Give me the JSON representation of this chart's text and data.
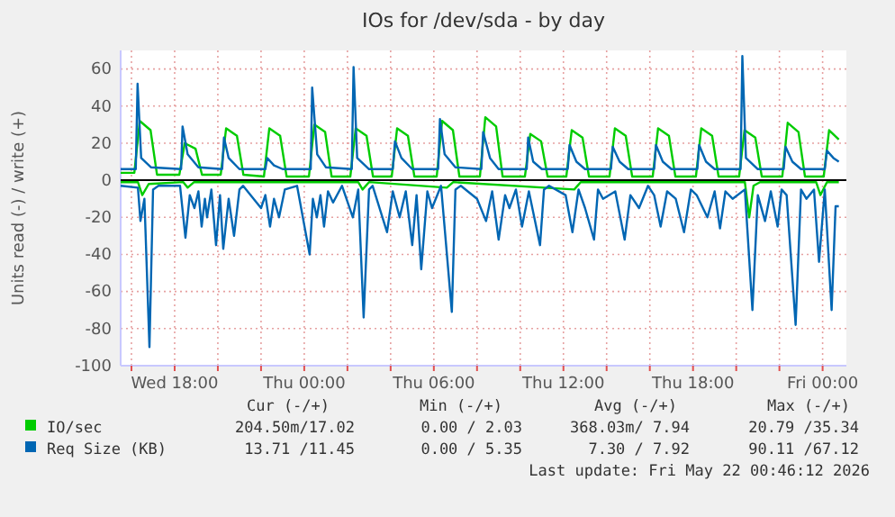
{
  "chart_data": {
    "type": "line",
    "title": "IOs for /dev/sda - by day",
    "ylabel": "Units read (-) / write (+)",
    "xlim": [
      "2026-05-20T15:30",
      "2026-05-22T01:06"
    ],
    "xticks": [
      {
        "value": "2026-05-20T16:00",
        "label": null
      },
      {
        "value": "2026-05-20T18:00",
        "label": "Wed 18:00"
      },
      {
        "value": "2026-05-20T20:00",
        "label": null
      },
      {
        "value": "2026-05-20T22:00",
        "label": null
      },
      {
        "value": "2026-05-21T00:00",
        "label": "Thu 00:00"
      },
      {
        "value": "2026-05-21T02:00",
        "label": null
      },
      {
        "value": "2026-05-21T04:00",
        "label": null
      },
      {
        "value": "2026-05-21T06:00",
        "label": "Thu 06:00"
      },
      {
        "value": "2026-05-21T08:00",
        "label": null
      },
      {
        "value": "2026-05-21T10:00",
        "label": null
      },
      {
        "value": "2026-05-21T12:00",
        "label": "Thu 12:00"
      },
      {
        "value": "2026-05-21T14:00",
        "label": null
      },
      {
        "value": "2026-05-21T16:00",
        "label": null
      },
      {
        "value": "2026-05-21T18:00",
        "label": "Thu 18:00"
      },
      {
        "value": "2026-05-21T20:00",
        "label": null
      },
      {
        "value": "2026-05-21T22:00",
        "label": null
      },
      {
        "value": "2026-05-22T00:00",
        "label": "Fri 00:00"
      }
    ],
    "ylim": [
      -100,
      70
    ],
    "yticks": [
      -100,
      -80,
      -60,
      -40,
      -20,
      0,
      20,
      40,
      60
    ],
    "grid": true,
    "legend": "bottom",
    "line_style": "solid",
    "marker": "none",
    "ref_lines": [
      {
        "axis": "y",
        "value": 0,
        "color": "#000000"
      }
    ],
    "series": [
      {
        "color": "#00cc00",
        "x": [
          "2026-05-20T15:30",
          "2026-05-20T16:18",
          "2026-05-20T16:30",
          "2026-05-20T16:48",
          "2026-05-20T18:24",
          "2026-05-20T18:36",
          "2026-05-20T18:54",
          "2026-05-21T02:30",
          "2026-05-21T02:42",
          "2026-05-21T03:00",
          "2026-05-21T06:36",
          "2026-05-21T06:54",
          "2026-05-21T12:30",
          "2026-05-21T12:48",
          "2026-05-21T20:24",
          "2026-05-21T20:36",
          "2026-05-21T20:48",
          "2026-05-21T21:06",
          "2026-05-21T23:42",
          "2026-05-21T23:54",
          "2026-05-22T00:12",
          "2026-05-22T00:45"
        ],
        "values": [
          -1,
          -1,
          -8,
          -2,
          -1,
          -4,
          -1,
          -1,
          -5,
          -1,
          -4,
          -1,
          -5,
          -1,
          -1,
          -20,
          -3,
          -1,
          -1,
          -8,
          -1,
          -1
        ]
      },
      {
        "name": "IO/sec",
        "color": "#00cc00",
        "x": [
          "2026-05-20T15:30",
          "2026-05-20T16:08",
          "2026-05-20T16:23",
          "2026-05-20T16:53",
          "2026-05-20T17:11",
          "2026-05-20T18:13",
          "2026-05-20T18:28",
          "2026-05-20T18:58",
          "2026-05-20T19:16",
          "2026-05-20T20:08",
          "2026-05-20T20:23",
          "2026-05-20T20:53",
          "2026-05-20T21:11",
          "2026-05-20T22:08",
          "2026-05-20T22:23",
          "2026-05-20T22:53",
          "2026-05-20T23:11",
          "2026-05-21T00:13",
          "2026-05-21T00:28",
          "2026-05-21T00:58",
          "2026-05-21T01:16",
          "2026-05-21T02:08",
          "2026-05-21T02:23",
          "2026-05-21T02:53",
          "2026-05-21T03:11",
          "2026-05-21T04:03",
          "2026-05-21T04:18",
          "2026-05-21T04:48",
          "2026-05-21T05:06",
          "2026-05-21T06:08",
          "2026-05-21T06:23",
          "2026-05-21T06:53",
          "2026-05-21T07:11",
          "2026-05-21T08:08",
          "2026-05-21T08:23",
          "2026-05-21T08:53",
          "2026-05-21T09:11",
          "2026-05-21T10:13",
          "2026-05-21T10:28",
          "2026-05-21T10:58",
          "2026-05-21T11:16",
          "2026-05-21T12:08",
          "2026-05-21T12:23",
          "2026-05-21T12:53",
          "2026-05-21T13:11",
          "2026-05-21T14:08",
          "2026-05-21T14:23",
          "2026-05-21T14:53",
          "2026-05-21T15:11",
          "2026-05-21T16:08",
          "2026-05-21T16:23",
          "2026-05-21T16:53",
          "2026-05-21T17:11",
          "2026-05-21T18:08",
          "2026-05-21T18:23",
          "2026-05-21T18:53",
          "2026-05-21T19:11",
          "2026-05-21T20:08",
          "2026-05-21T20:23",
          "2026-05-21T20:53",
          "2026-05-21T21:11",
          "2026-05-21T22:08",
          "2026-05-21T22:23",
          "2026-05-21T22:53",
          "2026-05-21T23:11",
          "2026-05-22T00:03",
          "2026-05-22T00:18",
          "2026-05-22T00:45"
        ],
        "values": [
          4,
          4,
          32,
          27,
          3,
          3,
          20,
          17,
          3,
          3,
          28,
          24,
          3,
          2,
          28,
          24,
          2,
          2,
          30,
          26,
          2,
          2,
          28,
          24,
          2,
          2,
          28,
          24,
          2,
          2,
          32,
          27,
          2,
          2,
          34,
          29,
          2,
          2,
          25,
          21,
          2,
          2,
          27,
          23,
          2,
          2,
          28,
          24,
          2,
          2,
          28,
          24,
          2,
          2,
          28,
          24,
          2,
          2,
          27,
          23,
          2,
          2,
          31,
          26,
          2,
          2,
          27,
          22
        ]
      },
      {
        "color": "#0066b3",
        "x": [
          "2026-05-20T15:30",
          "2026-05-20T16:18",
          "2026-05-20T16:25",
          "2026-05-20T16:36",
          "2026-05-20T16:50",
          "2026-05-20T17:00",
          "2026-05-20T17:15",
          "2026-05-20T18:15",
          "2026-05-20T18:30",
          "2026-05-20T18:42",
          "2026-05-20T18:55",
          "2026-05-20T19:06",
          "2026-05-20T19:15",
          "2026-05-20T19:24",
          "2026-05-20T19:30",
          "2026-05-20T19:42",
          "2026-05-20T19:55",
          "2026-05-20T20:06",
          "2026-05-20T20:15",
          "2026-05-20T20:30",
          "2026-05-20T20:45",
          "2026-05-20T21:00",
          "2026-05-20T21:10",
          "2026-05-20T22:00",
          "2026-05-20T22:12",
          "2026-05-20T22:25",
          "2026-05-20T22:36",
          "2026-05-20T22:50",
          "2026-05-20T23:06",
          "2026-05-20T23:40",
          "2026-05-21T00:15",
          "2026-05-21T00:24",
          "2026-05-21T00:35",
          "2026-05-21T00:45",
          "2026-05-21T00:55",
          "2026-05-21T01:06",
          "2026-05-21T01:20",
          "2026-05-21T01:45",
          "2026-05-21T02:15",
          "2026-05-21T02:30",
          "2026-05-21T02:45",
          "2026-05-21T03:00",
          "2026-05-21T03:10",
          "2026-05-21T03:50",
          "2026-05-21T04:06",
          "2026-05-21T04:25",
          "2026-05-21T04:42",
          "2026-05-21T05:00",
          "2026-05-21T05:12",
          "2026-05-21T05:25",
          "2026-05-21T05:42",
          "2026-05-21T05:55",
          "2026-05-21T06:20",
          "2026-05-21T06:50",
          "2026-05-21T07:00",
          "2026-05-21T07:15",
          "2026-05-21T08:00",
          "2026-05-21T08:25",
          "2026-05-21T08:42",
          "2026-05-21T09:00",
          "2026-05-21T09:18",
          "2026-05-21T09:30",
          "2026-05-21T09:48",
          "2026-05-21T10:05",
          "2026-05-21T10:24",
          "2026-05-21T10:55",
          "2026-05-21T11:06",
          "2026-05-21T11:20",
          "2026-05-21T12:06",
          "2026-05-21T12:25",
          "2026-05-21T12:42",
          "2026-05-21T13:00",
          "2026-05-21T13:25",
          "2026-05-21T13:36",
          "2026-05-21T13:50",
          "2026-05-21T14:24",
          "2026-05-21T14:50",
          "2026-05-21T15:06",
          "2026-05-21T15:30",
          "2026-05-21T15:55",
          "2026-05-21T16:12",
          "2026-05-21T16:30",
          "2026-05-21T16:48",
          "2026-05-21T17:12",
          "2026-05-21T17:35",
          "2026-05-21T17:54",
          "2026-05-21T18:10",
          "2026-05-21T18:40",
          "2026-05-21T19:00",
          "2026-05-21T19:15",
          "2026-05-21T19:30",
          "2026-05-21T19:50",
          "2026-05-21T20:24",
          "2026-05-21T20:45",
          "2026-05-21T21:00",
          "2026-05-21T21:20",
          "2026-05-21T21:36",
          "2026-05-21T21:55",
          "2026-05-21T22:06",
          "2026-05-21T22:20",
          "2026-05-21T22:45",
          "2026-05-21T23:00",
          "2026-05-21T23:15",
          "2026-05-21T23:36",
          "2026-05-21T23:50",
          "2026-05-22T00:06",
          "2026-05-22T00:25",
          "2026-05-22T00:36",
          "2026-05-22T00:45"
        ],
        "values": [
          -3,
          -4,
          -22,
          -10,
          -90,
          -5,
          -3,
          -3,
          -31,
          -8,
          -15,
          -6,
          -25,
          -10,
          -20,
          -5,
          -35,
          -8,
          -37,
          -10,
          -30,
          -5,
          -3,
          -15,
          -8,
          -25,
          -10,
          -20,
          -5,
          -3,
          -40,
          -10,
          -20,
          -8,
          -25,
          -6,
          -12,
          -3,
          -20,
          -5,
          -74,
          -5,
          -3,
          -28,
          -6,
          -20,
          -6,
          -35,
          -8,
          -48,
          -6,
          -15,
          -3,
          -71,
          -5,
          -3,
          -10,
          -22,
          -6,
          -32,
          -8,
          -15,
          -5,
          -25,
          -6,
          -35,
          -5,
          -3,
          -8,
          -28,
          -5,
          -15,
          -32,
          -5,
          -10,
          -6,
          -32,
          -8,
          -15,
          -3,
          -8,
          -25,
          -6,
          -10,
          -28,
          -5,
          -8,
          -20,
          -6,
          -26,
          -6,
          -10,
          -5,
          -70,
          -8,
          -22,
          -6,
          -25,
          -5,
          -8,
          -78,
          -5,
          -10,
          -5,
          -44,
          -5,
          -70,
          -14,
          -14
        ]
      },
      {
        "name": "Req Size (KB)",
        "color": "#0066b3",
        "x": [
          "2026-05-20T15:30",
          "2026-05-20T16:12",
          "2026-05-20T16:17",
          "2026-05-20T16:27",
          "2026-05-20T16:54",
          "2026-05-20T18:18",
          "2026-05-20T18:22",
          "2026-05-20T18:36",
          "2026-05-20T19:06",
          "2026-05-20T20:12",
          "2026-05-20T20:17",
          "2026-05-20T20:30",
          "2026-05-20T21:00",
          "2026-05-20T22:12",
          "2026-05-20T22:17",
          "2026-05-20T22:36",
          "2026-05-20T23:00",
          "2026-05-21T00:18",
          "2026-05-21T00:22",
          "2026-05-21T00:36",
          "2026-05-21T01:00",
          "2026-05-21T02:12",
          "2026-05-21T02:17",
          "2026-05-21T02:27",
          "2026-05-21T03:00",
          "2026-05-21T04:06",
          "2026-05-21T04:12",
          "2026-05-21T04:30",
          "2026-05-21T05:00",
          "2026-05-21T06:12",
          "2026-05-21T06:17",
          "2026-05-21T06:30",
          "2026-05-21T07:00",
          "2026-05-21T08:12",
          "2026-05-21T08:17",
          "2026-05-21T08:36",
          "2026-05-21T09:00",
          "2026-05-21T10:18",
          "2026-05-21T10:22",
          "2026-05-21T10:36",
          "2026-05-21T11:00",
          "2026-05-21T12:12",
          "2026-05-21T12:17",
          "2026-05-21T12:36",
          "2026-05-21T13:00",
          "2026-05-21T14:12",
          "2026-05-21T14:17",
          "2026-05-21T14:36",
          "2026-05-21T15:00",
          "2026-05-21T16:12",
          "2026-05-21T16:17",
          "2026-05-21T16:36",
          "2026-05-21T17:00",
          "2026-05-21T18:12",
          "2026-05-21T18:17",
          "2026-05-21T18:36",
          "2026-05-21T19:00",
          "2026-05-21T20:12",
          "2026-05-21T20:17",
          "2026-05-21T20:27",
          "2026-05-21T21:00",
          "2026-05-21T22:12",
          "2026-05-21T22:17",
          "2026-05-21T22:36",
          "2026-05-21T23:00",
          "2026-05-22T00:06",
          "2026-05-22T00:12",
          "2026-05-22T00:30",
          "2026-05-22T00:45"
        ],
        "values": [
          6,
          6,
          52,
          12,
          7,
          6,
          29,
          14,
          7,
          6,
          23,
          12,
          6,
          6,
          12,
          8,
          6,
          6,
          50,
          14,
          7,
          6,
          61,
          12,
          6,
          6,
          21,
          12,
          6,
          6,
          33,
          14,
          7,
          6,
          26,
          12,
          6,
          6,
          23,
          10,
          6,
          6,
          19,
          10,
          6,
          6,
          18,
          10,
          6,
          6,
          19,
          10,
          6,
          6,
          19,
          10,
          6,
          6,
          67,
          12,
          6,
          6,
          18,
          10,
          6,
          6,
          16,
          12,
          10
        ]
      }
    ],
    "annotations": [
      "Cur (-/+)",
      "Min (-/+)",
      "Avg (-/+)",
      "Max (-/+)",
      "204.50m/17.02",
      "0.00 / 2.03",
      "368.03m/ 7.94",
      "20.79 /35.34",
      "13.71 /11.45",
      "0.00 / 5.35",
      "7.30 / 7.92",
      "90.11 /67.12",
      "Last update: Fri May 22 00:46:12 2026"
    ]
  }
}
